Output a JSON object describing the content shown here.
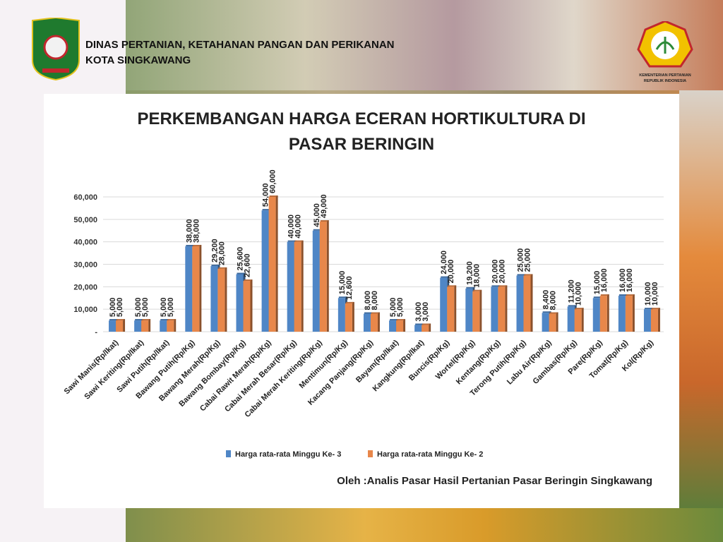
{
  "header": {
    "line1": "DINAS PERTANIAN, KETAHANAN PANGAN DAN PERIKANAN",
    "line2": "KOTA SINGKAWANG",
    "logo_right_line1": "KEMENTERIAN PERTANIAN",
    "logo_right_line2": "REPUBLIK INDONESIA"
  },
  "chart_data": {
    "type": "bar",
    "title": [
      "PERKEMBANGAN HARGA ECERAN HORTIKULTURA DI",
      "PASAR BERINGIN"
    ],
    "categories": [
      "Sawi Manis(Rp/Ikat)",
      "Sawi Keriting(Rp/Ikat)",
      "Sawi Putih(Rp/Ikat)",
      "Bawang Putih(Rp/Kg)",
      "Bawang Merah(Rp/Kg)",
      "Bawang Bombay(Rp/Kg)",
      "Cabai Rawit Merah(Rp/Kg)",
      "Cabai Merah Besar(Rp/Kg)",
      "Cabai Merah Keriting(Rp/Kg)",
      "Mentimun(Rp/Kg)",
      "Kacang Panjang(Rp/Kg)",
      "Bayam(Rp/Ikat)",
      "Kangkung(Rp/Ikat)",
      "Buncis(Rp/Kg)",
      "Wortel(Rp/Kg)",
      "Kentang(Rp/Kg)",
      "Terong Putih(Rp/Kg)",
      "Labu Air(Rp/Kg)",
      "Gambas(Rp/Kg)",
      "Pare(Rp/Kg)",
      "Tomat(Rp/Kg)",
      "Kol(Rp/Kg)"
    ],
    "series": [
      {
        "name": "Harga rata-rata Minggu Ke- 3",
        "color": "#4f86c6",
        "values": [
          5000,
          5000,
          5000,
          38000,
          29200,
          25600,
          54000,
          40000,
          45000,
          15000,
          8000,
          5000,
          3000,
          24000,
          19200,
          20000,
          25000,
          8400,
          11200,
          15000,
          16000,
          10000
        ],
        "value_labels": [
          "5,000",
          "5,000",
          "5,000",
          "38,000",
          "29,200",
          "25,600",
          "54,000",
          "40,000",
          "45,000",
          "15,000",
          "8,000",
          "5,000",
          "3,000",
          "24,000",
          "19,200",
          "20,000",
          "25,000",
          "8,400",
          "11,200",
          "15,000",
          "16,000",
          "10,000"
        ]
      },
      {
        "name": "Harga rata-rata Minggu Ke- 2",
        "color": "#e8874a",
        "values": [
          5000,
          5000,
          5000,
          38000,
          28000,
          22600,
          60000,
          40000,
          49000,
          12600,
          8000,
          5000,
          3000,
          20000,
          18000,
          20000,
          25000,
          8000,
          10000,
          16000,
          16000,
          10000
        ],
        "value_labels": [
          "5,000",
          "5,000",
          "5,000",
          "38,000",
          "28,000",
          "22,600",
          "60,000",
          "40,000",
          "49,000",
          "12,600",
          "8,000",
          "5,000",
          "3,000",
          "20,000",
          "18,000",
          "20,000",
          "25,000",
          "8,000",
          "10,000",
          "16,000",
          "16,000",
          "10,000"
        ]
      }
    ],
    "ylim": [
      0,
      60000
    ],
    "yticks": [
      {
        "value": 0,
        "label": "-"
      },
      {
        "value": 10000,
        "label": "10,000"
      },
      {
        "value": 20000,
        "label": "20,000"
      },
      {
        "value": 30000,
        "label": "30,000"
      },
      {
        "value": 40000,
        "label": "40,000"
      },
      {
        "value": 50000,
        "label": "50,000"
      },
      {
        "value": 60000,
        "label": "60,000"
      }
    ],
    "grid": true,
    "legend": "bottom",
    "footnote": "Oleh :Analis Pasar Hasil Pertanian Pasar Beringin Singkawang"
  }
}
